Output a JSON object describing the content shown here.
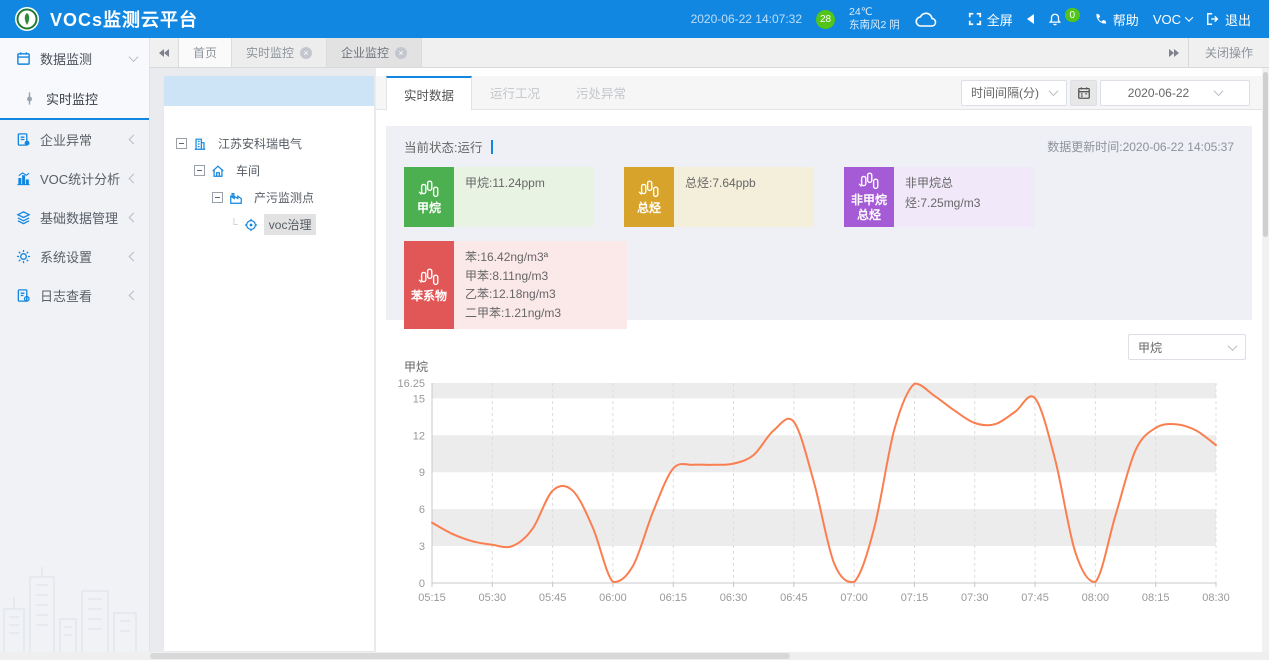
{
  "header": {
    "title": "VOCs监测云平台",
    "datetime": "2020-06-22 14:07:32",
    "aqi": "28",
    "temp": "24℃",
    "wind": "东南风2",
    "sky": "阴",
    "fullscreen": "全屏",
    "bell_count": "0",
    "help": "帮助",
    "voc": "VOC",
    "logout": "退出",
    "brand_color": "#1287e1"
  },
  "tabbar": {
    "tabs": [
      {
        "label": "首页",
        "closable": false
      },
      {
        "label": "实时监控",
        "closable": true
      },
      {
        "label": "企业监控",
        "closable": true,
        "active": true
      }
    ],
    "close_ops": "关闭操作"
  },
  "sidebar": {
    "items": [
      {
        "label": "数据监测",
        "expanded": true,
        "children": [
          {
            "label": "实时监控",
            "active": true
          }
        ]
      },
      {
        "label": "企业异常"
      },
      {
        "label": "VOC统计分析"
      },
      {
        "label": "基础数据管理"
      },
      {
        "label": "系统设置"
      },
      {
        "label": "日志查看"
      }
    ]
  },
  "tree": {
    "nodes": [
      {
        "label": "江苏安科瑞电气",
        "level": 0
      },
      {
        "label": "车间",
        "level": 1
      },
      {
        "label": "产污监测点",
        "level": 2
      },
      {
        "label": "voc治理",
        "level": 3,
        "selected": true
      }
    ]
  },
  "main": {
    "tabs": [
      {
        "label": "实时数据",
        "active": true
      },
      {
        "label": "运行工况"
      },
      {
        "label": "污处异常"
      }
    ],
    "interval_select": "时间间隔(分)",
    "date_select": "2020-06-22",
    "status_label": "当前状态: ",
    "status_value": "运行",
    "update_time": "数据更新时间:2020-06-22 14:05:37",
    "cards": [
      {
        "name": "甲烷",
        "color": "#4cb050",
        "tint": "#e9f3e4",
        "lines": [
          "甲烷:11.24ppm"
        ]
      },
      {
        "name": "总烃",
        "color": "#d8a32a",
        "tint": "#f4efda",
        "lines": [
          "总烃:7.64ppb"
        ]
      },
      {
        "name": "非甲烷总烃",
        "color": "#a55bd5",
        "tint": "#f1e9fa",
        "lines": [
          "非甲烷总烃:7.25mg/m3"
        ]
      },
      {
        "name": "苯系物",
        "color": "#e15757",
        "tint": "#fbe9ea",
        "lines": [
          "苯:16.42ng/m3ª",
          "甲苯:8.11ng/m3",
          "乙苯:12.18ng/m3",
          "二甲苯:1.21ng/m3"
        ]
      }
    ],
    "chart_select": "甲烷"
  },
  "chart_data": {
    "type": "line",
    "title": "甲烷",
    "ylabel": "甲烷",
    "xlabel": "",
    "ylim": [
      0,
      16.25
    ],
    "yticks": [
      0,
      3,
      6,
      9,
      12,
      15,
      16.25
    ],
    "x_label_every": 3,
    "grid": "vertical-dashed",
    "split_area": true,
    "split_area_color": "#ececec",
    "line_color": "#fb7e50",
    "legend_position": "none",
    "x": [
      "05:15",
      "05:20",
      "05:25",
      "05:30",
      "05:35",
      "05:40",
      "05:45",
      "05:50",
      "05:55",
      "06:00",
      "06:05",
      "06:10",
      "06:15",
      "06:20",
      "06:25",
      "06:30",
      "06:35",
      "06:40",
      "06:45",
      "06:50",
      "06:55",
      "07:00",
      "07:05",
      "07:10",
      "07:15",
      "07:20",
      "07:25",
      "07:30",
      "07:35",
      "07:40",
      "07:45",
      "07:50",
      "07:55",
      "08:00",
      "08:05",
      "08:10",
      "08:15",
      "08:20",
      "08:25",
      "08:30"
    ],
    "values": [
      4.9,
      4.0,
      3.4,
      3.1,
      3.0,
      4.4,
      7.5,
      7.5,
      4.5,
      0.1,
      1.4,
      5.8,
      9.3,
      9.6,
      9.6,
      9.7,
      10.4,
      12.4,
      13.1,
      8.2,
      1.6,
      0.1,
      4.5,
      12.5,
      16.2,
      15.2,
      14.0,
      13.0,
      12.9,
      13.9,
      15.0,
      10.0,
      2.5,
      0.1,
      5.5,
      10.8,
      12.6,
      12.9,
      12.4,
      11.2
    ]
  }
}
